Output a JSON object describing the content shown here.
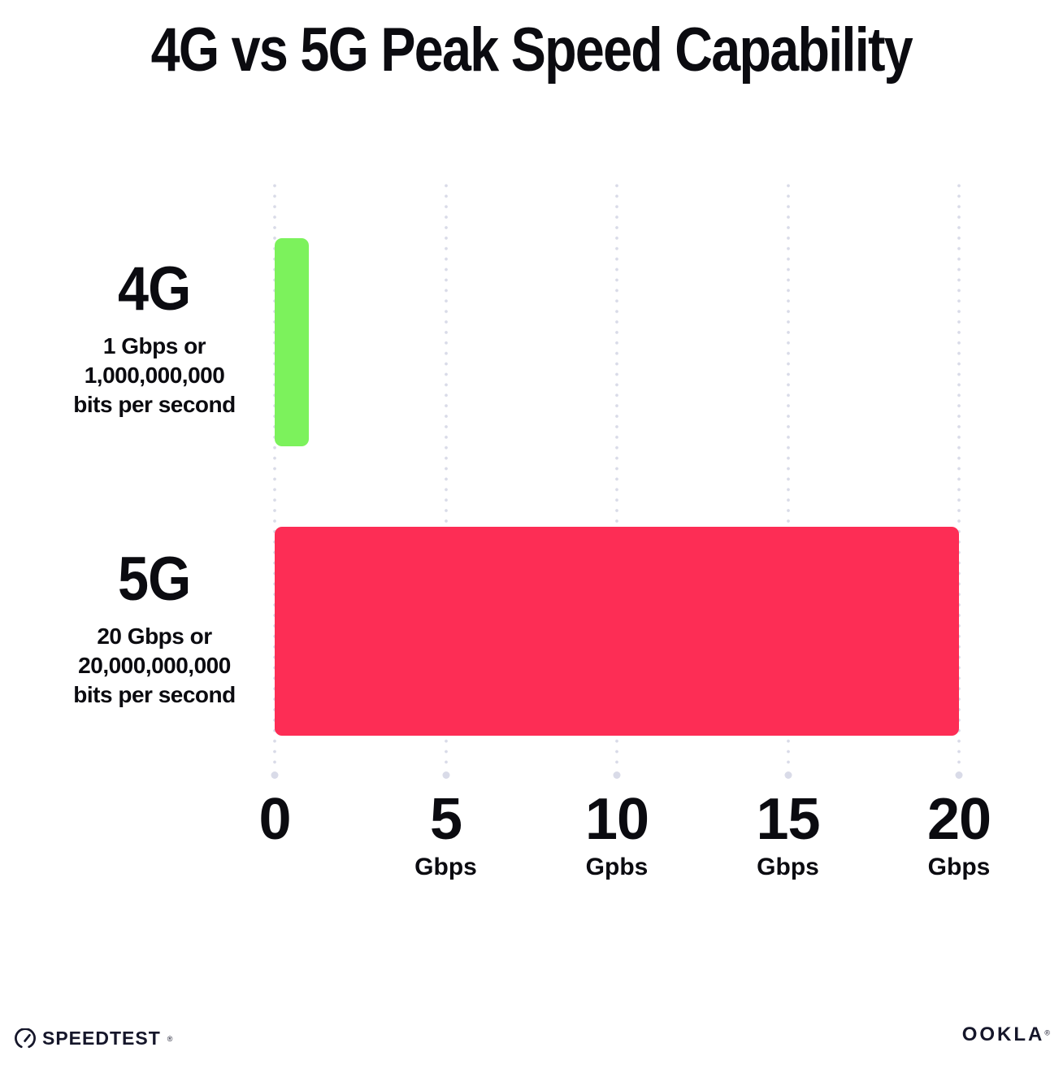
{
  "title": "4G vs 5G Peak Speed Capability",
  "chart_data": {
    "type": "bar",
    "orientation": "horizontal",
    "title": "4G vs 5G Peak Speed Capability",
    "categories": [
      "4G",
      "5G"
    ],
    "values": [
      1,
      20
    ],
    "unit": "Gbps",
    "series": [
      {
        "label": "4G",
        "value": 1,
        "color": "#7cf25c",
        "description_lines": [
          "1 Gbps or",
          "1,000,000,000",
          "bits per second"
        ]
      },
      {
        "label": "5G",
        "value": 20,
        "color": "#fd2d55",
        "description_lines": [
          "20 Gbps or",
          "20,000,000,000",
          "bits per second"
        ]
      }
    ],
    "x_axis": {
      "range": [
        0,
        20
      ],
      "ticks": [
        {
          "value": "0",
          "unit": ""
        },
        {
          "value": "5",
          "unit": "Gbps"
        },
        {
          "value": "10",
          "unit": "Gpbs"
        },
        {
          "value": "15",
          "unit": "Gbps"
        },
        {
          "value": "20",
          "unit": "Gbps"
        }
      ]
    },
    "grid": "vertical dotted gridlines at each tick, larger dot at baseline",
    "legend": "none"
  },
  "footer": {
    "speedtest_label": "SPEEDTEST",
    "speedtest_mark": "®",
    "ookla_label": "OOKLA",
    "ookla_mark": "®"
  },
  "colors": {
    "bar_4g": "#7cf25c",
    "bar_5g": "#fd2d55",
    "grid_dot": "#d9dbe8",
    "text": "#0b0b10",
    "background": "#ffffff"
  }
}
